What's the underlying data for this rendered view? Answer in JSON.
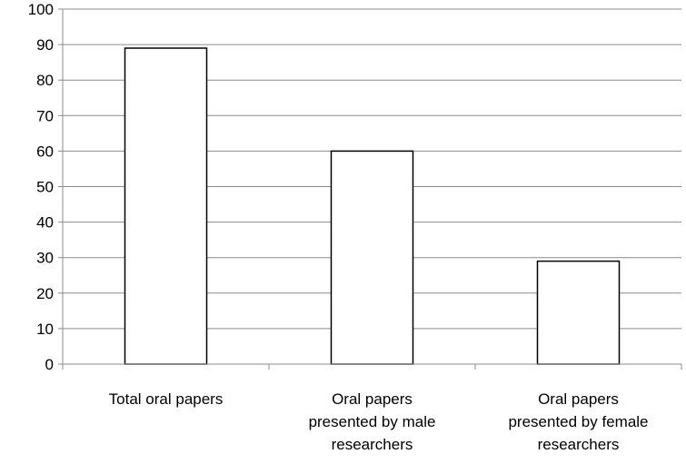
{
  "chart_data": {
    "type": "bar",
    "title": "",
    "xlabel": "",
    "ylabel": "",
    "categories": [
      [
        "Total oral papers"
      ],
      [
        "Oral papers",
        "presented by male",
        "researchers"
      ],
      [
        "Oral papers",
        "presented by female",
        "researchers"
      ]
    ],
    "values": [
      89,
      60,
      29
    ],
    "ylim": [
      0,
      100
    ],
    "yticks": [
      "0",
      "10",
      "20",
      "30",
      "40",
      "50",
      "60",
      "70",
      "80",
      "90",
      "100"
    ],
    "grid": true,
    "legend": "none",
    "colors": {
      "bar_fill": "#ffffff",
      "bar_stroke": "#000000",
      "grid": "#8c8c8c"
    }
  }
}
